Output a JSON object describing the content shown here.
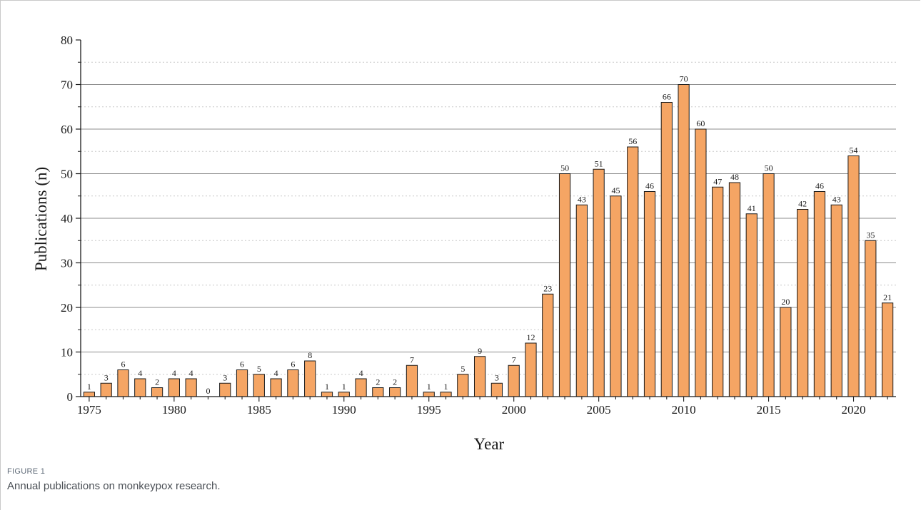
{
  "caption": {
    "label": "FIGURE 1",
    "text": "Annual publications on monkeypox research."
  },
  "colors": {
    "bar_fill": "#f5a564",
    "bar_stroke": "#1a1a1a",
    "grid_major": "#8c8c8c",
    "grid_minor": "#c8c8c8",
    "axis": "#1a1a1a"
  },
  "chart_data": {
    "type": "bar",
    "xlabel": "Year",
    "ylabel": "Publications (n)",
    "ylim": [
      0,
      80
    ],
    "yticks": [
      0,
      10,
      20,
      30,
      40,
      50,
      60,
      70,
      80
    ],
    "xticks": [
      1975,
      1980,
      1985,
      1990,
      1995,
      2000,
      2005,
      2010,
      2015,
      2020
    ],
    "grid": "horizontal",
    "categories": [
      1975,
      1976,
      1977,
      1978,
      1979,
      1980,
      1981,
      1982,
      1983,
      1984,
      1985,
      1986,
      1987,
      1988,
      1989,
      1990,
      1991,
      1992,
      1993,
      1994,
      1995,
      1996,
      1997,
      1998,
      1999,
      2000,
      2001,
      2002,
      2003,
      2004,
      2005,
      2006,
      2007,
      2008,
      2009,
      2010,
      2011,
      2012,
      2013,
      2014,
      2015,
      2016,
      2017,
      2018,
      2019,
      2020,
      2021,
      2022
    ],
    "values": [
      1,
      3,
      6,
      4,
      2,
      4,
      4,
      0,
      3,
      6,
      5,
      4,
      6,
      8,
      1,
      1,
      4,
      2,
      2,
      7,
      1,
      1,
      5,
      9,
      3,
      7,
      12,
      23,
      50,
      43,
      51,
      45,
      56,
      46,
      66,
      70,
      60,
      47,
      48,
      41,
      50,
      20,
      42,
      46,
      43,
      54,
      35,
      21
    ]
  }
}
